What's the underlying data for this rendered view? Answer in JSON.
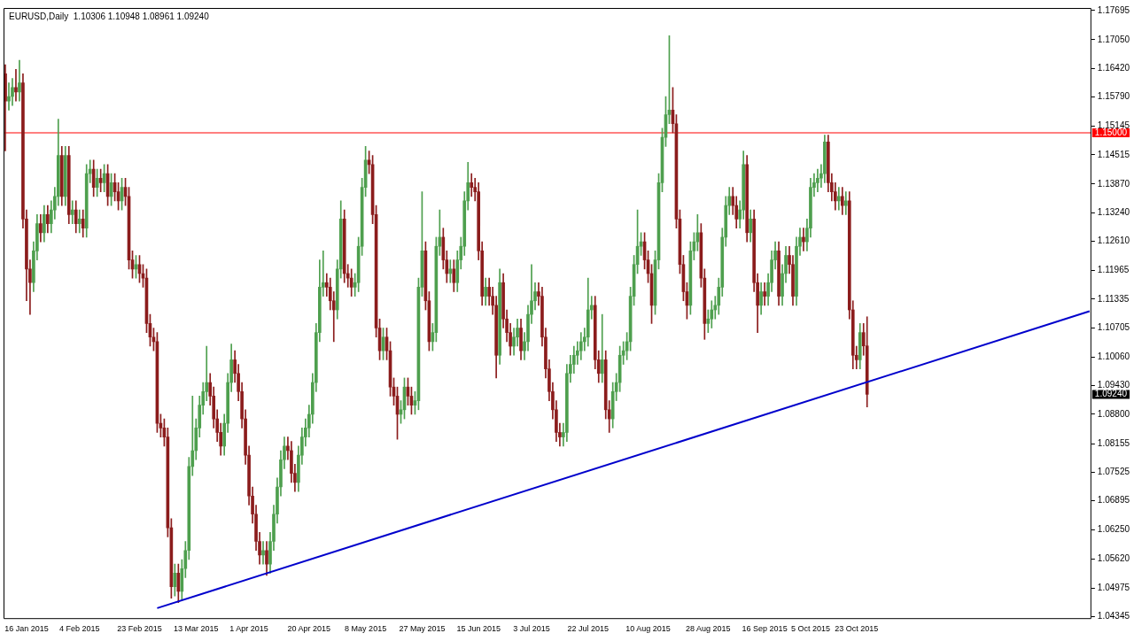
{
  "chart_data": {
    "type": "candlestick",
    "title": "EURUSD,Daily  1.10306 1.10948 1.08961 1.09240",
    "categories": [
      null,
      null,
      null,
      null,
      null,
      null,
      "16 Jan 2015",
      null,
      null,
      null,
      null,
      null,
      null,
      null,
      null,
      null,
      null,
      null,
      null,
      null,
      null,
      "4 Feb 2015",
      null,
      null,
      null,
      null,
      null,
      null,
      null,
      null,
      null,
      null,
      null,
      null,
      null,
      null,
      null,
      null,
      "23 Feb 2015",
      null,
      null,
      null,
      null,
      null,
      null,
      null,
      null,
      null,
      null,
      null,
      null,
      null,
      null,
      null,
      "13 Mar 2015",
      null,
      null,
      null,
      null,
      null,
      null,
      null,
      null,
      null,
      null,
      null,
      null,
      null,
      null,
      "1 Apr 2015",
      null,
      null,
      null,
      null,
      null,
      null,
      null,
      null,
      null,
      null,
      null,
      null,
      null,
      null,
      null,
      null,
      "20 Apr 2015",
      null,
      null,
      null,
      null,
      null,
      null,
      null,
      null,
      null,
      null,
      null,
      null,
      null,
      null,
      null,
      "8 May 2015",
      null,
      null,
      null,
      null,
      null,
      null,
      null,
      null,
      null,
      null,
      null,
      null,
      null,
      null,
      null,
      "27 May 2015",
      null,
      null,
      null,
      null,
      null,
      null,
      null,
      null,
      null,
      null,
      null,
      null,
      null,
      null,
      null,
      "15 Jun 2015",
      null,
      null,
      null,
      null,
      null,
      null,
      null,
      null,
      null,
      null,
      null,
      null,
      null,
      null,
      "3 Jul 2015",
      null,
      null,
      null,
      null,
      null,
      null,
      null,
      null,
      null,
      null,
      null,
      null,
      null,
      null,
      null,
      "22 Jul 2015",
      null,
      null,
      null,
      null,
      null,
      null,
      null,
      null,
      null,
      null,
      null,
      null,
      null,
      null,
      null,
      null,
      "10 Aug 2015",
      null,
      null,
      null,
      null,
      null,
      null,
      null,
      null,
      null,
      null,
      null,
      null,
      null,
      null,
      null,
      null,
      "28 Aug 2015",
      null,
      null,
      null,
      null,
      null,
      null,
      null,
      null,
      null,
      null,
      null,
      null,
      null,
      null,
      null,
      "16 Sep 2015",
      null,
      null,
      null,
      null,
      null,
      null,
      null,
      null,
      null,
      null,
      null,
      null,
      "5 Oct 2015",
      null,
      null,
      null,
      null,
      null,
      null,
      null,
      null,
      null,
      null,
      null,
      null,
      "23 Oct 2015",
      null,
      null,
      null,
      null,
      null,
      null,
      null,
      null,
      null,
      null,
      null,
      null,
      null,
      null,
      null,
      null,
      null,
      null,
      null,
      null,
      null,
      null,
      null,
      null,
      null,
      null,
      null,
      null,
      null,
      null,
      null,
      null,
      null,
      null,
      null,
      null,
      null,
      null,
      null,
      null,
      null,
      null,
      null,
      null,
      null,
      null,
      null,
      null,
      null,
      null,
      null,
      null,
      null,
      null,
      null,
      null,
      null,
      null,
      null,
      null,
      null,
      null,
      null,
      null,
      null,
      null
    ],
    "ohlc": [
      [
        1.163,
        1.165,
        1.146,
        1.157
      ],
      [
        1.157,
        1.161,
        1.155,
        1.158
      ],
      [
        1.158,
        1.162,
        1.156,
        1.16
      ],
      [
        1.16,
        1.164,
        1.157,
        1.159
      ],
      [
        1.159,
        1.166,
        1.157,
        1.161
      ],
      [
        1.161,
        1.163,
        1.129,
        1.131
      ],
      [
        1.131,
        1.133,
        1.113,
        1.12
      ],
      [
        1.12,
        1.122,
        1.11,
        1.117
      ],
      [
        1.117,
        1.126,
        1.115,
        1.124
      ],
      [
        1.124,
        1.132,
        1.122,
        1.13
      ],
      [
        1.13,
        1.132,
        1.126,
        1.128
      ],
      [
        1.128,
        1.134,
        1.126,
        1.132
      ],
      [
        1.132,
        1.134,
        1.128,
        1.13
      ],
      [
        1.13,
        1.135,
        1.128,
        1.133
      ],
      [
        1.133,
        1.138,
        1.131,
        1.136
      ],
      [
        1.136,
        1.153,
        1.134,
        1.145
      ],
      [
        1.145,
        1.147,
        1.134,
        1.136
      ],
      [
        1.136,
        1.147,
        1.134,
        1.145
      ],
      [
        1.145,
        1.147,
        1.13,
        1.132
      ],
      [
        1.132,
        1.135,
        1.13,
        1.133
      ],
      [
        1.133,
        1.135,
        1.128,
        1.13
      ],
      [
        1.13,
        1.133,
        1.128,
        1.131
      ],
      [
        1.131,
        1.133,
        1.127,
        1.129
      ],
      [
        1.129,
        1.143,
        1.127,
        1.141
      ],
      [
        1.141,
        1.144,
        1.139,
        1.142
      ],
      [
        1.142,
        1.144,
        1.136,
        1.138
      ],
      [
        1.138,
        1.142,
        1.136,
        1.14
      ],
      [
        1.14,
        1.142,
        1.137,
        1.139
      ],
      [
        1.139,
        1.143,
        1.137,
        1.141
      ],
      [
        1.141,
        1.143,
        1.134,
        1.136
      ],
      [
        1.136,
        1.141,
        1.134,
        1.139
      ],
      [
        1.139,
        1.141,
        1.135,
        1.137
      ],
      [
        1.137,
        1.139,
        1.133,
        1.135
      ],
      [
        1.135,
        1.14,
        1.133,
        1.138
      ],
      [
        1.138,
        1.14,
        1.134,
        1.136
      ],
      [
        1.136,
        1.138,
        1.12,
        1.122
      ],
      [
        1.122,
        1.124,
        1.118,
        1.12
      ],
      [
        1.12,
        1.123,
        1.118,
        1.121
      ],
      [
        1.121,
        1.123,
        1.117,
        1.119
      ],
      [
        1.119,
        1.121,
        1.116,
        1.118
      ],
      [
        1.118,
        1.12,
        1.106,
        1.108
      ],
      [
        1.108,
        1.11,
        1.103,
        1.105
      ],
      [
        1.105,
        1.107,
        1.102,
        1.104
      ],
      [
        1.104,
        1.106,
        1.084,
        1.086
      ],
      [
        1.086,
        1.088,
        1.083,
        1.085
      ],
      [
        1.085,
        1.087,
        1.081,
        1.083
      ],
      [
        1.083,
        1.085,
        1.061,
        1.063
      ],
      [
        1.063,
        1.065,
        1.0475,
        1.05
      ],
      [
        1.05,
        1.055,
        1.048,
        1.053
      ],
      [
        1.053,
        1.055,
        1.0465,
        1.049
      ],
      [
        1.049,
        1.056,
        1.047,
        1.054
      ],
      [
        1.054,
        1.06,
        1.052,
        1.058
      ],
      [
        1.058,
        1.0785,
        1.056,
        1.0765
      ],
      [
        1.0765,
        1.092,
        1.0745,
        1.08
      ],
      [
        1.08,
        1.087,
        1.078,
        1.085
      ],
      [
        1.085,
        1.092,
        1.083,
        1.09
      ],
      [
        1.09,
        1.095,
        1.088,
        1.093
      ],
      [
        1.093,
        1.103,
        1.091,
        1.095
      ],
      [
        1.095,
        1.097,
        1.09,
        1.092
      ],
      [
        1.092,
        1.094,
        1.085,
        1.087
      ],
      [
        1.087,
        1.089,
        1.082,
        1.084
      ],
      [
        1.084,
        1.086,
        1.079,
        1.081
      ],
      [
        1.081,
        1.088,
        1.079,
        1.086
      ],
      [
        1.086,
        1.097,
        1.084,
        1.095
      ],
      [
        1.095,
        1.1035,
        1.093,
        1.1
      ],
      [
        1.1,
        1.102,
        1.095,
        1.097
      ],
      [
        1.097,
        1.099,
        1.091,
        1.093
      ],
      [
        1.093,
        1.095,
        1.085,
        1.087
      ],
      [
        1.087,
        1.089,
        1.077,
        1.079
      ],
      [
        1.079,
        1.081,
        1.068,
        1.07
      ],
      [
        1.07,
        1.072,
        1.064,
        1.066
      ],
      [
        1.066,
        1.068,
        1.058,
        1.06
      ],
      [
        1.06,
        1.062,
        1.055,
        1.057
      ],
      [
        1.057,
        1.06,
        1.055,
        1.058
      ],
      [
        1.058,
        1.06,
        1.0525,
        1.055
      ],
      [
        1.055,
        1.062,
        1.053,
        1.06
      ],
      [
        1.06,
        1.068,
        1.058,
        1.066
      ],
      [
        1.066,
        1.074,
        1.064,
        1.072
      ],
      [
        1.072,
        1.08,
        1.07,
        1.078
      ],
      [
        1.078,
        1.083,
        1.076,
        1.081
      ],
      [
        1.081,
        1.083,
        1.078,
        1.08
      ],
      [
        1.08,
        1.082,
        1.073,
        1.075
      ],
      [
        1.075,
        1.077,
        1.071,
        1.073
      ],
      [
        1.073,
        1.081,
        1.071,
        1.079
      ],
      [
        1.079,
        1.085,
        1.077,
        1.083
      ],
      [
        1.083,
        1.087,
        1.081,
        1.085
      ],
      [
        1.085,
        1.09,
        1.083,
        1.088
      ],
      [
        1.088,
        1.097,
        1.086,
        1.095
      ],
      [
        1.095,
        1.108,
        1.093,
        1.106
      ],
      [
        1.106,
        1.122,
        1.104,
        1.116
      ],
      [
        1.116,
        1.124,
        1.114,
        1.117
      ],
      [
        1.117,
        1.119,
        1.114,
        1.116
      ],
      [
        1.116,
        1.118,
        1.111,
        1.113
      ],
      [
        1.113,
        1.115,
        1.104,
        1.111
      ],
      [
        1.111,
        1.122,
        1.109,
        1.12
      ],
      [
        1.12,
        1.135,
        1.118,
        1.131
      ],
      [
        1.131,
        1.133,
        1.117,
        1.119
      ],
      [
        1.119,
        1.121,
        1.116,
        1.118
      ],
      [
        1.118,
        1.12,
        1.114,
        1.116
      ],
      [
        1.116,
        1.119,
        1.114,
        1.117
      ],
      [
        1.117,
        1.127,
        1.115,
        1.125
      ],
      [
        1.125,
        1.14,
        1.123,
        1.138
      ],
      [
        1.138,
        1.147,
        1.136,
        1.144
      ],
      [
        1.144,
        1.146,
        1.141,
        1.143
      ],
      [
        1.143,
        1.145,
        1.13,
        1.132
      ],
      [
        1.132,
        1.134,
        1.105,
        1.107
      ],
      [
        1.107,
        1.109,
        1.1,
        1.102
      ],
      [
        1.102,
        1.107,
        1.1,
        1.105
      ],
      [
        1.105,
        1.107,
        1.1,
        1.102
      ],
      [
        1.102,
        1.104,
        1.092,
        1.094
      ],
      [
        1.094,
        1.096,
        1.09,
        1.092
      ],
      [
        1.092,
        1.094,
        1.0825,
        1.088
      ],
      [
        1.088,
        1.091,
        1.086,
        1.089
      ],
      [
        1.089,
        1.096,
        1.087,
        1.094
      ],
      [
        1.094,
        1.096,
        1.09,
        1.092
      ],
      [
        1.092,
        1.094,
        1.088,
        1.09
      ],
      [
        1.09,
        1.093,
        1.088,
        1.091
      ],
      [
        1.091,
        1.118,
        1.089,
        1.116
      ],
      [
        1.116,
        1.137,
        1.114,
        1.124
      ],
      [
        1.124,
        1.126,
        1.111,
        1.113
      ],
      [
        1.113,
        1.115,
        1.102,
        1.104
      ],
      [
        1.104,
        1.108,
        1.102,
        1.106
      ],
      [
        1.106,
        1.127,
        1.104,
        1.125
      ],
      [
        1.125,
        1.133,
        1.123,
        1.127
      ],
      [
        1.127,
        1.129,
        1.12,
        1.122
      ],
      [
        1.122,
        1.124,
        1.117,
        1.119
      ],
      [
        1.119,
        1.122,
        1.117,
        1.12
      ],
      [
        1.12,
        1.122,
        1.115,
        1.117
      ],
      [
        1.117,
        1.124,
        1.115,
        1.122
      ],
      [
        1.122,
        1.127,
        1.12,
        1.125
      ],
      [
        1.125,
        1.137,
        1.123,
        1.135
      ],
      [
        1.135,
        1.1435,
        1.133,
        1.139
      ],
      [
        1.139,
        1.141,
        1.136,
        1.138
      ],
      [
        1.138,
        1.14,
        1.135,
        1.137
      ],
      [
        1.137,
        1.139,
        1.122,
        1.124
      ],
      [
        1.124,
        1.126,
        1.112,
        1.114
      ],
      [
        1.114,
        1.118,
        1.112,
        1.116
      ],
      [
        1.116,
        1.118,
        1.112,
        1.114
      ],
      [
        1.114,
        1.116,
        1.11,
        1.112
      ],
      [
        1.112,
        1.114,
        1.096,
        1.101
      ],
      [
        1.101,
        1.12,
        1.099,
        1.117
      ],
      [
        1.117,
        1.119,
        1.107,
        1.109
      ],
      [
        1.109,
        1.111,
        1.104,
        1.106
      ],
      [
        1.106,
        1.108,
        1.101,
        1.103
      ],
      [
        1.103,
        1.107,
        1.101,
        1.105
      ],
      [
        1.105,
        1.109,
        1.103,
        1.107
      ],
      [
        1.107,
        1.109,
        1.1,
        1.102
      ],
      [
        1.102,
        1.106,
        1.1,
        1.104
      ],
      [
        1.104,
        1.112,
        1.102,
        1.11
      ],
      [
        1.11,
        1.121,
        1.108,
        1.113
      ],
      [
        1.113,
        1.117,
        1.111,
        1.115
      ],
      [
        1.115,
        1.117,
        1.112,
        1.114
      ],
      [
        1.114,
        1.116,
        1.103,
        1.105
      ],
      [
        1.105,
        1.107,
        1.096,
        1.098
      ],
      [
        1.098,
        1.1,
        1.091,
        1.093
      ],
      [
        1.093,
        1.095,
        1.087,
        1.089
      ],
      [
        1.089,
        1.091,
        1.082,
        1.084
      ],
      [
        1.084,
        1.086,
        1.081,
        1.083
      ],
      [
        1.083,
        1.086,
        1.081,
        1.084
      ],
      [
        1.084,
        1.099,
        1.082,
        1.097
      ],
      [
        1.097,
        1.101,
        1.095,
        1.099
      ],
      [
        1.099,
        1.103,
        1.097,
        1.101
      ],
      [
        1.101,
        1.104,
        1.099,
        1.102
      ],
      [
        1.102,
        1.106,
        1.1,
        1.104
      ],
      [
        1.104,
        1.107,
        1.102,
        1.105
      ],
      [
        1.105,
        1.118,
        1.103,
        1.111
      ],
      [
        1.111,
        1.114,
        1.109,
        1.112
      ],
      [
        1.112,
        1.114,
        1.098,
        1.1
      ],
      [
        1.1,
        1.102,
        1.095,
        1.097
      ],
      [
        1.097,
        1.11,
        1.095,
        1.1
      ],
      [
        1.1,
        1.102,
        1.087,
        1.089
      ],
      [
        1.089,
        1.091,
        1.084,
        1.087
      ],
      [
        1.087,
        1.095,
        1.085,
        1.093
      ],
      [
        1.093,
        1.097,
        1.091,
        1.095
      ],
      [
        1.095,
        1.103,
        1.093,
        1.101
      ],
      [
        1.101,
        1.104,
        1.099,
        1.102
      ],
      [
        1.102,
        1.106,
        1.1,
        1.104
      ],
      [
        1.104,
        1.116,
        1.102,
        1.114
      ],
      [
        1.114,
        1.123,
        1.112,
        1.121
      ],
      [
        1.121,
        1.133,
        1.119,
        1.125
      ],
      [
        1.125,
        1.128,
        1.123,
        1.126
      ],
      [
        1.126,
        1.128,
        1.12,
        1.122
      ],
      [
        1.122,
        1.124,
        1.117,
        1.119
      ],
      [
        1.119,
        1.121,
        1.108,
        1.112
      ],
      [
        1.112,
        1.124,
        1.11,
        1.122
      ],
      [
        1.122,
        1.141,
        1.12,
        1.139
      ],
      [
        1.139,
        1.151,
        1.137,
        1.149
      ],
      [
        1.149,
        1.158,
        1.147,
        1.154
      ],
      [
        1.154,
        1.1714,
        1.152,
        1.155
      ],
      [
        1.155,
        1.16,
        1.15,
        1.152
      ],
      [
        1.152,
        1.154,
        1.129,
        1.131
      ],
      [
        1.131,
        1.133,
        1.119,
        1.121
      ],
      [
        1.121,
        1.123,
        1.113,
        1.115
      ],
      [
        1.115,
        1.117,
        1.109,
        1.112
      ],
      [
        1.112,
        1.126,
        1.11,
        1.124
      ],
      [
        1.124,
        1.128,
        1.122,
        1.126
      ],
      [
        1.126,
        1.132,
        1.124,
        1.128
      ],
      [
        1.128,
        1.13,
        1.116,
        1.118
      ],
      [
        1.118,
        1.12,
        1.1045,
        1.108
      ],
      [
        1.108,
        1.111,
        1.106,
        1.109
      ],
      [
        1.109,
        1.113,
        1.107,
        1.111
      ],
      [
        1.111,
        1.114,
        1.109,
        1.112
      ],
      [
        1.112,
        1.118,
        1.11,
        1.116
      ],
      [
        1.116,
        1.129,
        1.114,
        1.127
      ],
      [
        1.127,
        1.136,
        1.125,
        1.134
      ],
      [
        1.134,
        1.138,
        1.132,
        1.136
      ],
      [
        1.136,
        1.138,
        1.132,
        1.134
      ],
      [
        1.134,
        1.136,
        1.129,
        1.131
      ],
      [
        1.131,
        1.135,
        1.129,
        1.133
      ],
      [
        1.133,
        1.146,
        1.131,
        1.143
      ],
      [
        1.143,
        1.145,
        1.126,
        1.128
      ],
      [
        1.128,
        1.133,
        1.126,
        1.131
      ],
      [
        1.131,
        1.133,
        1.115,
        1.117
      ],
      [
        1.117,
        1.119,
        1.106,
        1.112
      ],
      [
        1.112,
        1.117,
        1.11,
        1.115
      ],
      [
        1.115,
        1.117,
        1.112,
        1.114
      ],
      [
        1.114,
        1.119,
        1.112,
        1.117
      ],
      [
        1.117,
        1.124,
        1.115,
        1.122
      ],
      [
        1.122,
        1.126,
        1.12,
        1.124
      ],
      [
        1.124,
        1.126,
        1.112,
        1.114
      ],
      [
        1.114,
        1.121,
        1.112,
        1.119
      ],
      [
        1.119,
        1.125,
        1.117,
        1.123
      ],
      [
        1.123,
        1.125,
        1.119,
        1.121
      ],
      [
        1.121,
        1.123,
        1.112,
        1.114
      ],
      [
        1.114,
        1.127,
        1.112,
        1.125
      ],
      [
        1.125,
        1.129,
        1.123,
        1.127
      ],
      [
        1.127,
        1.129,
        1.124,
        1.126
      ],
      [
        1.126,
        1.131,
        1.124,
        1.129
      ],
      [
        1.129,
        1.14,
        1.127,
        1.138
      ],
      [
        1.138,
        1.141,
        1.136,
        1.139
      ],
      [
        1.139,
        1.142,
        1.137,
        1.14
      ],
      [
        1.14,
        1.143,
        1.138,
        1.141
      ],
      [
        1.141,
        1.1495,
        1.139,
        1.148
      ],
      [
        1.148,
        1.1495,
        1.137,
        1.139
      ],
      [
        1.139,
        1.141,
        1.135,
        1.137
      ],
      [
        1.137,
        1.139,
        1.133,
        1.135
      ],
      [
        1.135,
        1.138,
        1.133,
        1.136
      ],
      [
        1.136,
        1.138,
        1.132,
        1.134
      ],
      [
        1.134,
        1.137,
        1.132,
        1.135
      ],
      [
        1.135,
        1.137,
        1.109,
        1.111
      ],
      [
        1.111,
        1.113,
        1.098,
        1.101
      ],
      [
        1.101,
        1.103,
        1.098,
        1.1
      ],
      [
        1.1,
        1.108,
        1.098,
        1.106
      ],
      [
        1.106,
        1.108,
        1.101,
        1.10306
      ],
      [
        1.10306,
        1.10948,
        1.08961,
        1.0924
      ],
      null,
      null,
      null,
      null,
      null,
      null,
      null,
      null,
      null,
      null,
      null,
      null,
      null,
      null,
      null,
      null,
      null,
      null,
      null,
      null,
      null,
      null,
      null,
      null,
      null,
      null,
      null,
      null,
      null,
      null,
      null,
      null,
      null,
      null,
      null,
      null,
      null,
      null,
      null,
      null,
      null,
      null,
      null,
      null,
      null,
      null,
      null,
      null,
      null,
      null,
      null,
      null,
      null,
      null,
      null,
      null,
      null,
      null,
      null,
      null,
      null,
      null,
      null
    ],
    "colors": [
      "#8b1c1c",
      "#4e9f4e",
      "#4e9f4e",
      "#8b1c1c",
      "#4e9f4e",
      "#8b1c1c",
      "#8b1c1c",
      "#8b1c1c",
      "#4e9f4e",
      "#4e9f4e",
      "#8b1c1c",
      "#4e9f4e",
      "#8b1c1c",
      "#4e9f4e",
      "#4e9f4e",
      "#4e9f4e",
      "#8b1c1c",
      "#4e9f4e",
      "#8b1c1c",
      "#4e9f4e",
      "#8b1c1c",
      "#4e9f4e",
      "#8b1c1c",
      "#4e9f4e",
      "#4e9f4e",
      "#8b1c1c",
      "#4e9f4e",
      "#8b1c1c",
      "#4e9f4e",
      "#8b1c1c",
      "#4e9f4e",
      "#8b1c1c",
      "#8b1c1c",
      "#4e9f4e",
      "#8b1c1c",
      "#8b1c1c",
      "#8b1c1c",
      "#4e9f4e",
      "#8b1c1c",
      "#8b1c1c",
      "#8b1c1c",
      "#8b1c1c",
      "#8b1c1c",
      "#8b1c1c",
      "#8b1c1c",
      "#8b1c1c",
      "#8b1c1c",
      "#8b1c1c",
      "#4e9f4e",
      "#8b1c1c",
      "#4e9f4e",
      "#4e9f4e",
      "#4e9f4e",
      "#4e9f4e",
      "#4e9f4e",
      "#4e9f4e",
      "#4e9f4e",
      "#4e9f4e",
      "#8b1c1c",
      "#8b1c1c",
      "#8b1c1c",
      "#8b1c1c",
      "#4e9f4e",
      "#4e9f4e",
      "#4e9f4e",
      "#8b1c1c",
      "#8b1c1c",
      "#8b1c1c",
      "#8b1c1c",
      "#8b1c1c",
      "#8b1c1c",
      "#8b1c1c",
      "#8b1c1c",
      "#4e9f4e",
      "#8b1c1c",
      "#4e9f4e",
      "#4e9f4e",
      "#4e9f4e",
      "#4e9f4e",
      "#4e9f4e",
      "#8b1c1c",
      "#8b1c1c",
      "#8b1c1c",
      "#4e9f4e",
      "#4e9f4e",
      "#4e9f4e",
      "#4e9f4e",
      "#4e9f4e",
      "#4e9f4e",
      "#4e9f4e",
      "#4e9f4e",
      "#8b1c1c",
      "#8b1c1c",
      "#8b1c1c",
      "#4e9f4e",
      "#4e9f4e",
      "#8b1c1c",
      "#8b1c1c",
      "#8b1c1c",
      "#4e9f4e",
      "#4e9f4e",
      "#4e9f4e",
      "#4e9f4e",
      "#8b1c1c",
      "#8b1c1c",
      "#8b1c1c",
      "#8b1c1c",
      "#4e9f4e",
      "#8b1c1c",
      "#8b1c1c",
      "#8b1c1c",
      "#8b1c1c",
      "#4e9f4e",
      "#4e9f4e",
      "#8b1c1c",
      "#8b1c1c",
      "#4e9f4e",
      "#4e9f4e",
      "#4e9f4e",
      "#8b1c1c",
      "#8b1c1c",
      "#4e9f4e",
      "#4e9f4e",
      "#4e9f4e",
      "#8b1c1c",
      "#8b1c1c",
      "#4e9f4e",
      "#8b1c1c",
      "#4e9f4e",
      "#4e9f4e",
      "#4e9f4e",
      "#4e9f4e",
      "#8b1c1c",
      "#8b1c1c",
      "#8b1c1c",
      "#8b1c1c",
      "#4e9f4e",
      "#8b1c1c",
      "#8b1c1c",
      "#8b1c1c",
      "#4e9f4e",
      "#8b1c1c",
      "#8b1c1c",
      "#8b1c1c",
      "#4e9f4e",
      "#4e9f4e",
      "#8b1c1c",
      "#4e9f4e",
      "#4e9f4e",
      "#4e9f4e",
      "#4e9f4e",
      "#8b1c1c",
      "#8b1c1c",
      "#8b1c1c",
      "#8b1c1c",
      "#8b1c1c",
      "#8b1c1c",
      "#8b1c1c",
      "#4e9f4e",
      "#4e9f4e",
      "#4e9f4e",
      "#4e9f4e",
      "#4e9f4e",
      "#4e9f4e",
      "#4e9f4e",
      "#4e9f4e",
      "#4e9f4e",
      "#8b1c1c",
      "#8b1c1c",
      "#4e9f4e",
      "#8b1c1c",
      "#8b1c1c",
      "#4e9f4e",
      "#4e9f4e",
      "#4e9f4e",
      "#4e9f4e",
      "#4e9f4e",
      "#4e9f4e",
      "#4e9f4e",
      "#4e9f4e",
      "#4e9f4e",
      "#8b1c1c",
      "#8b1c1c",
      "#8b1c1c",
      "#4e9f4e",
      "#4e9f4e",
      "#4e9f4e",
      "#4e9f4e",
      "#4e9f4e",
      "#8b1c1c",
      "#8b1c1c",
      "#8b1c1c",
      "#8b1c1c",
      "#8b1c1c",
      "#4e9f4e",
      "#4e9f4e",
      "#4e9f4e",
      "#8b1c1c",
      "#8b1c1c",
      "#4e9f4e",
      "#4e9f4e",
      "#4e9f4e",
      "#4e9f4e",
      "#4e9f4e",
      "#4e9f4e",
      "#4e9f4e",
      "#8b1c1c",
      "#8b1c1c",
      "#4e9f4e",
      "#4e9f4e",
      "#8b1c1c",
      "#4e9f4e",
      "#8b1c1c",
      "#8b1c1c",
      "#4e9f4e",
      "#8b1c1c",
      "#4e9f4e",
      "#4e9f4e",
      "#4e9f4e",
      "#8b1c1c",
      "#4e9f4e",
      "#4e9f4e",
      "#8b1c1c",
      "#8b1c1c",
      "#4e9f4e",
      "#4e9f4e",
      "#8b1c1c",
      "#4e9f4e",
      "#4e9f4e",
      "#4e9f4e",
      "#4e9f4e",
      "#4e9f4e",
      "#4e9f4e",
      "#8b1c1c",
      "#8b1c1c",
      "#8b1c1c",
      "#4e9f4e",
      "#8b1c1c",
      "#4e9f4e",
      "#8b1c1c",
      "#8b1c1c",
      "#8b1c1c",
      "#4e9f4e",
      "#8b1c1c",
      "#8b1c1c",
      null,
      null,
      null,
      null,
      null,
      null,
      null,
      null,
      null,
      null,
      null,
      null,
      null,
      null,
      null,
      null,
      null,
      null,
      null,
      null,
      null,
      null,
      null,
      null,
      null,
      null,
      null,
      null,
      null,
      null,
      null,
      null,
      null,
      null,
      null,
      null,
      null,
      null,
      null,
      null,
      null,
      null,
      null,
      null,
      null,
      null,
      null,
      null,
      null,
      null,
      null,
      null,
      null,
      null,
      null,
      null,
      null,
      null,
      null,
      null,
      null,
      null,
      null
    ],
    "series": [
      {
        "type": "line",
        "color": "#0000cc",
        "values": [
          null,
          null,
          null,
          null,
          null,
          null,
          null,
          null,
          null,
          null,
          null,
          null,
          null,
          null,
          null,
          null,
          null,
          null,
          null,
          null,
          null,
          null,
          null,
          null,
          null,
          null,
          null,
          null,
          null,
          null,
          null,
          null,
          null,
          null,
          null,
          null,
          null,
          null,
          null,
          null,
          null,
          null,
          null,
          1.0453,
          null,
          null,
          null,
          null,
          null,
          null,
          null,
          null,
          null,
          null,
          null,
          null,
          null,
          null,
          null,
          null,
          null,
          null,
          null,
          null,
          null,
          null,
          null,
          null,
          null,
          null,
          null,
          null,
          null,
          null,
          null,
          null,
          null,
          null,
          null,
          null,
          null,
          null,
          null,
          null,
          null,
          null,
          null,
          null,
          null,
          null,
          null,
          null,
          null,
          null,
          null,
          null,
          null,
          null,
          null,
          null,
          null,
          null,
          null,
          null,
          null,
          null,
          null,
          null,
          null,
          null,
          null,
          null,
          null,
          null,
          null,
          null,
          null,
          null,
          null,
          null,
          null,
          null,
          null,
          null,
          null,
          null,
          null,
          null,
          null,
          null,
          null,
          null,
          null,
          null,
          null,
          null,
          null,
          null,
          null,
          null,
          null,
          null,
          null,
          null,
          null,
          null,
          null,
          null,
          null,
          null,
          null,
          null,
          null,
          null,
          null,
          null,
          null,
          null,
          null,
          null,
          null,
          null,
          null,
          null,
          null,
          null,
          null,
          null,
          null,
          null,
          null,
          null,
          null,
          null,
          null,
          null,
          null,
          null,
          null,
          null,
          null,
          null,
          null,
          null,
          null,
          null,
          null,
          null,
          null,
          null,
          null,
          null,
          null,
          null,
          null,
          null,
          null,
          null,
          null,
          null,
          null,
          null,
          null,
          null,
          null,
          null,
          null,
          null,
          null,
          null,
          null,
          null,
          null,
          null,
          null,
          null,
          null,
          null,
          null,
          null,
          null,
          null,
          null,
          null,
          null,
          null,
          null,
          null,
          null,
          null,
          null,
          null,
          null,
          null,
          null,
          null,
          null,
          null,
          null,
          null,
          null,
          null,
          null,
          null,
          null,
          null,
          null,
          null,
          null,
          null,
          null,
          null,
          null,
          null,
          null,
          null,
          null,
          null,
          null,
          null,
          null,
          null,
          null,
          null,
          null,
          null,
          null,
          null,
          null,
          null,
          null,
          null,
          null,
          null,
          null,
          null,
          null,
          null,
          null,
          null,
          null,
          null,
          null,
          null,
          null,
          null,
          null,
          null,
          null,
          null,
          null,
          null,
          null,
          null,
          null,
          null,
          null,
          null,
          null,
          null,
          null,
          null,
          null,
          null,
          null,
          null,
          null,
          1.1107
        ]
      }
    ],
    "ylim": [
      1.0429,
      1.1775
    ],
    "yticks": [
      {
        "value": 1.04345,
        "label": "1.04345"
      },
      {
        "value": 1.04975,
        "label": "1.04975"
      },
      {
        "value": 1.0562,
        "label": "1.05620"
      },
      {
        "value": 1.0625,
        "label": "1.06250"
      },
      {
        "value": 1.06895,
        "label": "1.06895"
      },
      {
        "value": 1.07525,
        "label": "1.07525"
      },
      {
        "value": 1.08155,
        "label": "1.08155"
      },
      {
        "value": 1.088,
        "label": "1.08800"
      },
      {
        "value": 1.0943,
        "label": "1.09430"
      },
      {
        "value": 1.1006,
        "label": "1.10060"
      },
      {
        "value": 1.10705,
        "label": "1.10705"
      },
      {
        "value": 1.11335,
        "label": "1.11335"
      },
      {
        "value": 1.11965,
        "label": "1.11965"
      },
      {
        "value": 1.1261,
        "label": "1.12610"
      },
      {
        "value": 1.1324,
        "label": "1.13240"
      },
      {
        "value": 1.1387,
        "label": "1.13870"
      },
      {
        "value": 1.14515,
        "label": "1.14515"
      },
      {
        "value": 1.15145,
        "label": "1.15145"
      },
      {
        "value": 1.1579,
        "label": "1.15790"
      },
      {
        "value": 1.1642,
        "label": "1.16420"
      },
      {
        "value": 1.1705,
        "label": "1.17050"
      },
      {
        "value": 1.17695,
        "label": "1.17695"
      }
    ],
    "ref_lines": [
      {
        "axis": "y",
        "value": 1.15,
        "label": "1.15000",
        "color": "#ff0000"
      }
    ],
    "annotations": [
      "1.09240"
    ]
  }
}
